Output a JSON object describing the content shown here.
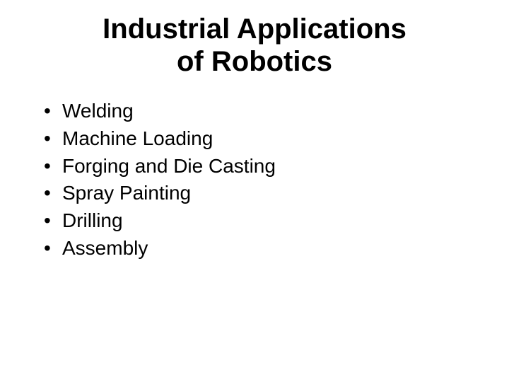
{
  "slide": {
    "title_line1": "Industrial Applications",
    "title_line2": "of Robotics",
    "bullets": [
      "Welding",
      "Machine Loading",
      "Forging and Die Casting",
      "Spray Painting",
      "Drilling",
      "Assembly"
    ],
    "bullet_marker": "•",
    "styling": {
      "background_color": "#ffffff",
      "text_color": "#000000",
      "title_fontsize": 40,
      "title_fontweight": "bold",
      "body_fontsize": 28,
      "font_family": "Arial"
    }
  }
}
